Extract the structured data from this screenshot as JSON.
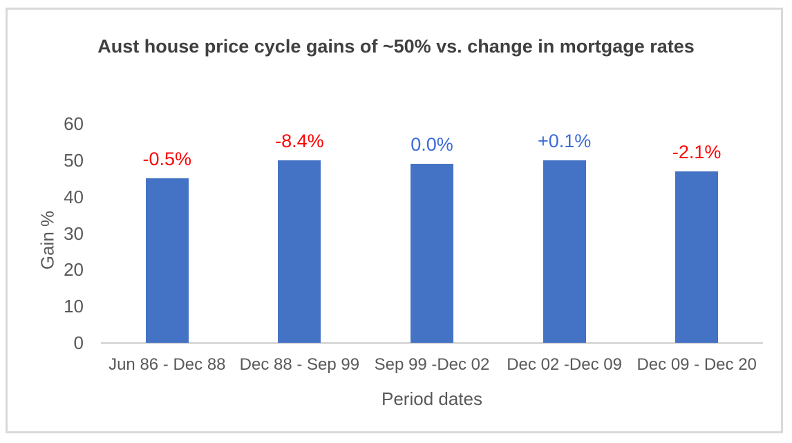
{
  "chart_data": {
    "type": "bar",
    "title": "Aust house price cycle gains of ~50% vs. change in mortgage rates",
    "xlabel": "Period dates",
    "ylabel": "Gain %",
    "categories": [
      "Jun 86 - Dec 88",
      "Dec 88 - Sep 99",
      "Sep 99 -Dec 02",
      "Dec 02 -Dec 09",
      "Dec 09 - Dec 20"
    ],
    "values": [
      45,
      50,
      49,
      50,
      47
    ],
    "bar_labels": [
      "-0.5%",
      "-8.4%",
      "0.0%",
      "+0.1%",
      "-2.1%"
    ],
    "bar_label_colors": [
      "#ff0000",
      "#ff0000",
      "#3b6cd6",
      "#3b6cd6",
      "#ff0000"
    ],
    "yticks": [
      0,
      10,
      20,
      30,
      40,
      50,
      60
    ],
    "ylim": [
      0,
      60
    ],
    "bar_color": "#4472c4",
    "axis_line_color": "#d9d9d9",
    "grid": false,
    "legend": false
  }
}
